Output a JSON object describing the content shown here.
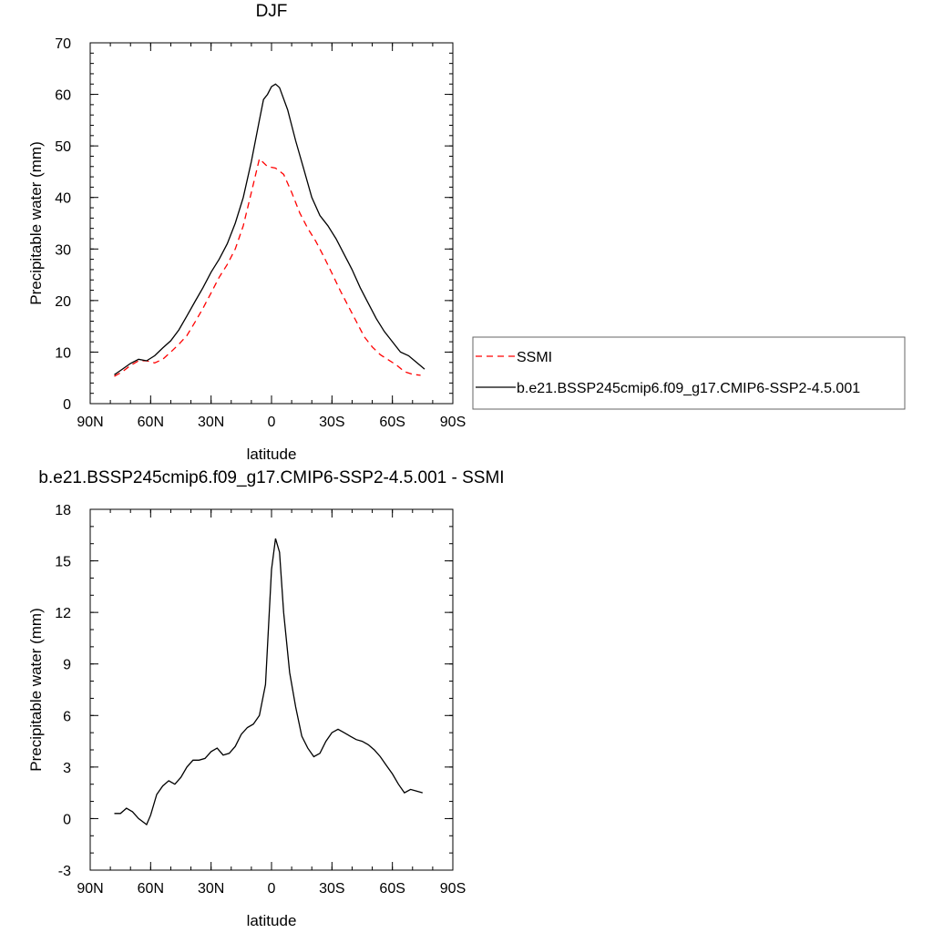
{
  "chart_data": [
    {
      "type": "line",
      "title": "DJF",
      "xlabel": "latitude",
      "ylabel": "Precipitable water (mm)",
      "xlim": [
        -90,
        90
      ],
      "ylim": [
        0,
        70
      ],
      "xticks": [
        -90,
        -60,
        -30,
        0,
        30,
        60,
        90
      ],
      "xtick_labels": [
        "90N",
        "60N",
        "30N",
        "0",
        "30S",
        "60S",
        "90S"
      ],
      "yticks": [
        0,
        10,
        20,
        30,
        40,
        50,
        60,
        70
      ],
      "ytick_labels": [
        "0",
        "10",
        "20",
        "30",
        "40",
        "50",
        "60",
        "70"
      ],
      "grid": false,
      "legend_position": "right",
      "series": [
        {
          "name": "SSMI",
          "color": "#ff0000",
          "dash": "dashed",
          "x": [
            -78,
            -74,
            -70,
            -66,
            -62,
            -58,
            -54,
            -50,
            -46,
            -42,
            -38,
            -34,
            -30,
            -26,
            -22,
            -18,
            -14,
            -10,
            -6,
            -2,
            2,
            6,
            10,
            14,
            18,
            22,
            26,
            30,
            34,
            38,
            42,
            46,
            50,
            54,
            58,
            62,
            66,
            70,
            74
          ],
          "y": [
            5.3,
            6.2,
            7.4,
            8.3,
            8.3,
            7.9,
            8.6,
            10.0,
            11.5,
            13.2,
            15.8,
            18.5,
            21.5,
            24.5,
            27.0,
            30.0,
            34.5,
            41.0,
            47.5,
            46.0,
            45.7,
            44.5,
            41.0,
            37.0,
            34.0,
            31.5,
            28.5,
            25.3,
            22.0,
            19.0,
            16.0,
            13.0,
            11.0,
            9.5,
            8.5,
            7.5,
            6.2,
            5.7,
            5.5
          ]
        },
        {
          "name": "b.e21.BSSP245cmip6.f09_g17.CMIP6-SSP2-4.5.001",
          "color": "#000000",
          "dash": "solid",
          "x": [
            -78,
            -74,
            -70,
            -66,
            -62,
            -58,
            -54,
            -50,
            -46,
            -42,
            -38,
            -34,
            -30,
            -26,
            -22,
            -18,
            -14,
            -10,
            -6,
            -4,
            -2,
            0,
            2,
            4,
            8,
            12,
            16,
            20,
            24,
            28,
            32,
            36,
            40,
            44,
            48,
            52,
            56,
            60,
            64,
            68,
            72,
            76
          ],
          "y": [
            5.6,
            6.7,
            7.8,
            8.6,
            8.3,
            9.3,
            10.8,
            12.2,
            14.3,
            17.0,
            19.8,
            22.5,
            25.5,
            28.0,
            31.0,
            35.0,
            40.0,
            47.0,
            55.0,
            59.0,
            60.0,
            61.5,
            62.0,
            61.3,
            57.0,
            51.0,
            45.5,
            40.0,
            36.5,
            34.5,
            32.0,
            29.0,
            26.0,
            22.5,
            19.5,
            16.5,
            14.0,
            12.0,
            10.0,
            9.3,
            8.0,
            6.7
          ]
        }
      ]
    },
    {
      "type": "line",
      "title": "b.e21.BSSP245cmip6.f09_g17.CMIP6-SSP2-4.5.001 - SSMI",
      "xlabel": "latitude",
      "ylabel": "Precipitable water (mm)",
      "xlim": [
        -90,
        90
      ],
      "ylim": [
        -3,
        18
      ],
      "xticks": [
        -90,
        -60,
        -30,
        0,
        30,
        60,
        90
      ],
      "xtick_labels": [
        "90N",
        "60N",
        "30N",
        "0",
        "30S",
        "60S",
        "90S"
      ],
      "yticks": [
        -3,
        0,
        3,
        6,
        9,
        12,
        15,
        18
      ],
      "ytick_labels": [
        "-3",
        "0",
        "3",
        "6",
        "9",
        "12",
        "15",
        "18"
      ],
      "grid": false,
      "series": [
        {
          "color": "#000000",
          "dash": "solid",
          "x": [
            -78,
            -75,
            -72,
            -69,
            -66,
            -62,
            -60,
            -57,
            -54,
            -51,
            -48,
            -45,
            -42,
            -39,
            -36,
            -33,
            -30,
            -27,
            -24,
            -21,
            -18,
            -15,
            -12,
            -9,
            -6,
            -3,
            0,
            2,
            4,
            6,
            9,
            12,
            15,
            18,
            21,
            24,
            27,
            30,
            33,
            36,
            39,
            42,
            45,
            48,
            51,
            54,
            57,
            60,
            63,
            66,
            69,
            72,
            75
          ],
          "y": [
            0.3,
            0.3,
            0.6,
            0.4,
            0.0,
            -0.35,
            0.2,
            1.4,
            1.9,
            2.2,
            2.0,
            2.4,
            3.0,
            3.4,
            3.4,
            3.5,
            3.9,
            4.1,
            3.7,
            3.8,
            4.2,
            4.9,
            5.3,
            5.5,
            6.0,
            7.8,
            14.5,
            16.3,
            15.5,
            12.0,
            8.5,
            6.5,
            4.8,
            4.1,
            3.6,
            3.8,
            4.5,
            5.0,
            5.2,
            5.0,
            4.8,
            4.6,
            4.5,
            4.3,
            4.0,
            3.6,
            3.1,
            2.6,
            2.0,
            1.5,
            1.7,
            1.6,
            1.5
          ]
        }
      ]
    }
  ]
}
